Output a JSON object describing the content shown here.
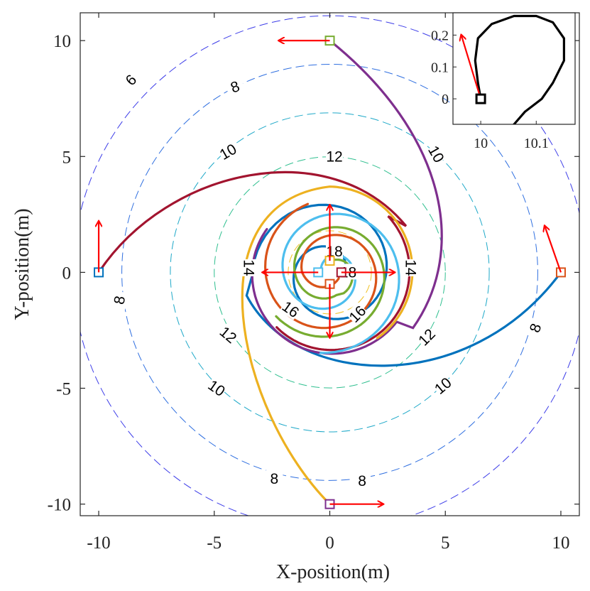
{
  "chart_data": {
    "type": "line",
    "xlabel": "X-position(m)",
    "ylabel": "Y-position(m)",
    "xlim": [
      -10.8,
      10.8
    ],
    "ylim": [
      -10.5,
      11.2
    ],
    "xticks": [
      -10,
      -5,
      0,
      5,
      10
    ],
    "yticks": [
      -10,
      -5,
      0,
      5,
      10
    ],
    "xtick_labels": [
      "-10",
      "-5",
      "0",
      "5",
      "10"
    ],
    "ytick_labels": [
      "-10",
      "-5",
      "0",
      "5",
      "10"
    ],
    "colors": {
      "blue": "#0072BD",
      "orange": "#D95319",
      "yellow": "#EDB120",
      "purple": "#7E2F8E",
      "green": "#77AC30",
      "cyan": "#4DBEEE",
      "maroon": "#A2142F",
      "arrow": "#FF0000"
    },
    "contours": [
      {
        "level": 6,
        "radius": 11.1,
        "color": "#3C3CE8"
      },
      {
        "level": 8,
        "radius": 9.0,
        "color": "#2F6FE0"
      },
      {
        "level": 10,
        "radius": 6.9,
        "color": "#1DA8C8"
      },
      {
        "level": 12,
        "radius": 5.0,
        "color": "#2FBF8F"
      },
      {
        "level": 16,
        "radius": 1.8,
        "color": "#F0C020"
      }
    ],
    "contour_labels": [
      {
        "text": "6",
        "x": -8.6,
        "y": 8.3,
        "angle": -45
      },
      {
        "text": "8",
        "x": -4.1,
        "y": 8.0,
        "angle": -20
      },
      {
        "text": "8",
        "x": -9.1,
        "y": -1.2,
        "angle": -80
      },
      {
        "text": "8",
        "x": 8.9,
        "y": -2.4,
        "angle": -70
      },
      {
        "text": "8",
        "x": -2.4,
        "y": -8.9,
        "angle": 0
      },
      {
        "text": "8",
        "x": 1.4,
        "y": -9.0,
        "angle": 0
      },
      {
        "text": "10",
        "x": -4.4,
        "y": 5.2,
        "angle": -30
      },
      {
        "text": "10",
        "x": 4.6,
        "y": 5.1,
        "angle": 60
      },
      {
        "text": "10",
        "x": -4.9,
        "y": -5.0,
        "angle": 35
      },
      {
        "text": "10",
        "x": 4.9,
        "y": -4.9,
        "angle": -40
      },
      {
        "text": "12",
        "x": 0.2,
        "y": 5.0,
        "angle": 0
      },
      {
        "text": "12",
        "x": -4.4,
        "y": -2.7,
        "angle": 40
      },
      {
        "text": "12",
        "x": 4.2,
        "y": -2.8,
        "angle": -45
      },
      {
        "text": "16",
        "x": -1.7,
        "y": -1.6,
        "angle": 35
      },
      {
        "text": "16",
        "x": 1.2,
        "y": -1.8,
        "angle": -45
      },
      {
        "text": "18",
        "x": 0.2,
        "y": 0.9,
        "angle": 0
      },
      {
        "text": "18",
        "x": 0.8,
        "y": 0.0,
        "angle": 0
      },
      {
        "text": "14",
        "x": -3.5,
        "y": 0.2,
        "angle": 90
      },
      {
        "text": "14",
        "x": 3.5,
        "y": 0.2,
        "angle": 90
      }
    ],
    "trajectories": [
      {
        "name": "blue",
        "color": "#0072BD",
        "start": [
          10,
          0
        ],
        "ctrl": [
          [
            6,
            -5.4
          ],
          [
            -1.5,
            -5.0
          ],
          [
            -3.6,
            -1.0
          ]
        ],
        "spiral": {
          "theta0": 3.3,
          "r0": 3.4,
          "turns": 1.6,
          "rEnd": 0.5
        }
      },
      {
        "name": "purple",
        "color": "#7E2F8E",
        "start": [
          0,
          10
        ],
        "ctrl": [
          [
            5,
            6
          ],
          [
            6,
            1
          ],
          [
            3.6,
            -2.4
          ]
        ],
        "spiral": {
          "theta0": -0.6,
          "r0": 3.6,
          "turns": 0.5,
          "rEnd": 3.3
        }
      },
      {
        "name": "maroon",
        "color": "#A2142F",
        "start": [
          -10,
          0
        ],
        "ctrl": [
          [
            -7,
            4.5
          ],
          [
            0,
            6
          ],
          [
            3.3,
            2
          ]
        ],
        "spiral": {
          "theta0": 0.8,
          "r0": 3.5,
          "turns": 0.5,
          "rEnd": 3.3
        }
      },
      {
        "name": "yellow",
        "color": "#EDB120",
        "start": [
          0,
          -10
        ],
        "ctrl": [
          [
            -4,
            -6
          ],
          [
            -6,
            3
          ],
          [
            0,
            3.7
          ]
        ],
        "spiral": {
          "theta0": 1.57,
          "r0": 3.7,
          "turns": 0.4,
          "rEnd": 3.5
        }
      },
      {
        "name": "green",
        "color": "#77AC30",
        "start": [
          0,
          0.5
        ],
        "ctrl": [
          [
            1.0,
            0.8
          ],
          [
            1.3,
            -0.4
          ],
          [
            0.6,
            -0.9
          ]
        ],
        "spiral": {
          "theta0": -1.2,
          "r0": 1.0,
          "turns": 1.2,
          "rEnd": 3.0
        }
      },
      {
        "name": "orange",
        "color": "#D95319",
        "start": [
          0.5,
          0
        ],
        "ctrl": [
          [
            0.3,
            -0.8
          ],
          [
            -0.8,
            -0.9
          ],
          [
            -1.2,
            0
          ]
        ],
        "spiral": {
          "theta0": 3.14,
          "r0": 1.2,
          "turns": 1.2,
          "rEnd": 3.1
        }
      },
      {
        "name": "cyan",
        "color": "#4DBEEE",
        "start": [
          -0.4,
          0
        ],
        "ctrl": [
          [
            -0.4,
            0.9
          ],
          [
            0.7,
            1.0
          ],
          [
            1.0,
            0.2
          ]
        ],
        "spiral": {
          "theta0": 0.2,
          "r0": 1.0,
          "turns": 1.3,
          "rEnd": 3.5
        }
      }
    ],
    "markers": [
      {
        "x": 10,
        "y": 0,
        "color": "#D95319"
      },
      {
        "x": 0,
        "y": 10,
        "color": "#77AC30"
      },
      {
        "x": -10,
        "y": 0,
        "color": "#0072BD"
      },
      {
        "x": 0,
        "y": -10,
        "color": "#7E2F8E"
      },
      {
        "x": 0,
        "y": 0.5,
        "color": "#EDB120"
      },
      {
        "x": 0.5,
        "y": 0,
        "color": "#A2142F"
      },
      {
        "x": 0,
        "y": -0.5,
        "color": "#D95319"
      },
      {
        "x": -0.5,
        "y": 0,
        "color": "#4DBEEE"
      }
    ],
    "arrows": [
      {
        "x": 10,
        "y": 0,
        "dx": -0.7,
        "dy": 2.0
      },
      {
        "x": 0,
        "y": 10,
        "dx": -2.2,
        "dy": 0
      },
      {
        "x": -10,
        "y": 0,
        "dx": 0,
        "dy": 2.2
      },
      {
        "x": 0,
        "y": -10,
        "dx": 2.3,
        "dy": 0
      },
      {
        "x": 0,
        "y": 0.5,
        "dx": 0,
        "dy": 2.4
      },
      {
        "x": 0.5,
        "y": 0,
        "dx": 2.3,
        "dy": 0
      },
      {
        "x": 0,
        "y": -0.5,
        "dx": 0,
        "dy": -2.3
      },
      {
        "x": -0.5,
        "y": 0,
        "dx": -2.4,
        "dy": 0
      }
    ],
    "inset": {
      "xlim": [
        9.95,
        10.17
      ],
      "ylim": [
        -0.08,
        0.27
      ],
      "xticks": [
        10,
        10.1
      ],
      "yticks": [
        0,
        0.1,
        0.2
      ],
      "xtick_labels": [
        "10",
        "10.1"
      ],
      "ytick_labels": [
        "0",
        "0.1",
        "0.2"
      ],
      "curve": [
        [
          10.0,
          0.0
        ],
        [
          9.995,
          0.05
        ],
        [
          9.99,
          0.12
        ],
        [
          9.995,
          0.19
        ],
        [
          10.02,
          0.235
        ],
        [
          10.06,
          0.26
        ],
        [
          10.1,
          0.26
        ],
        [
          10.13,
          0.24
        ],
        [
          10.15,
          0.19
        ],
        [
          10.15,
          0.12
        ],
        [
          10.13,
          0.05
        ],
        [
          10.11,
          0.0
        ],
        [
          10.08,
          -0.04
        ],
        [
          10.06,
          -0.08
        ]
      ],
      "marker": [
        10.0,
        0.0
      ],
      "arrow": {
        "x": 10.0,
        "y": 0.0,
        "dx": -0.035,
        "dy": 0.2
      }
    }
  }
}
